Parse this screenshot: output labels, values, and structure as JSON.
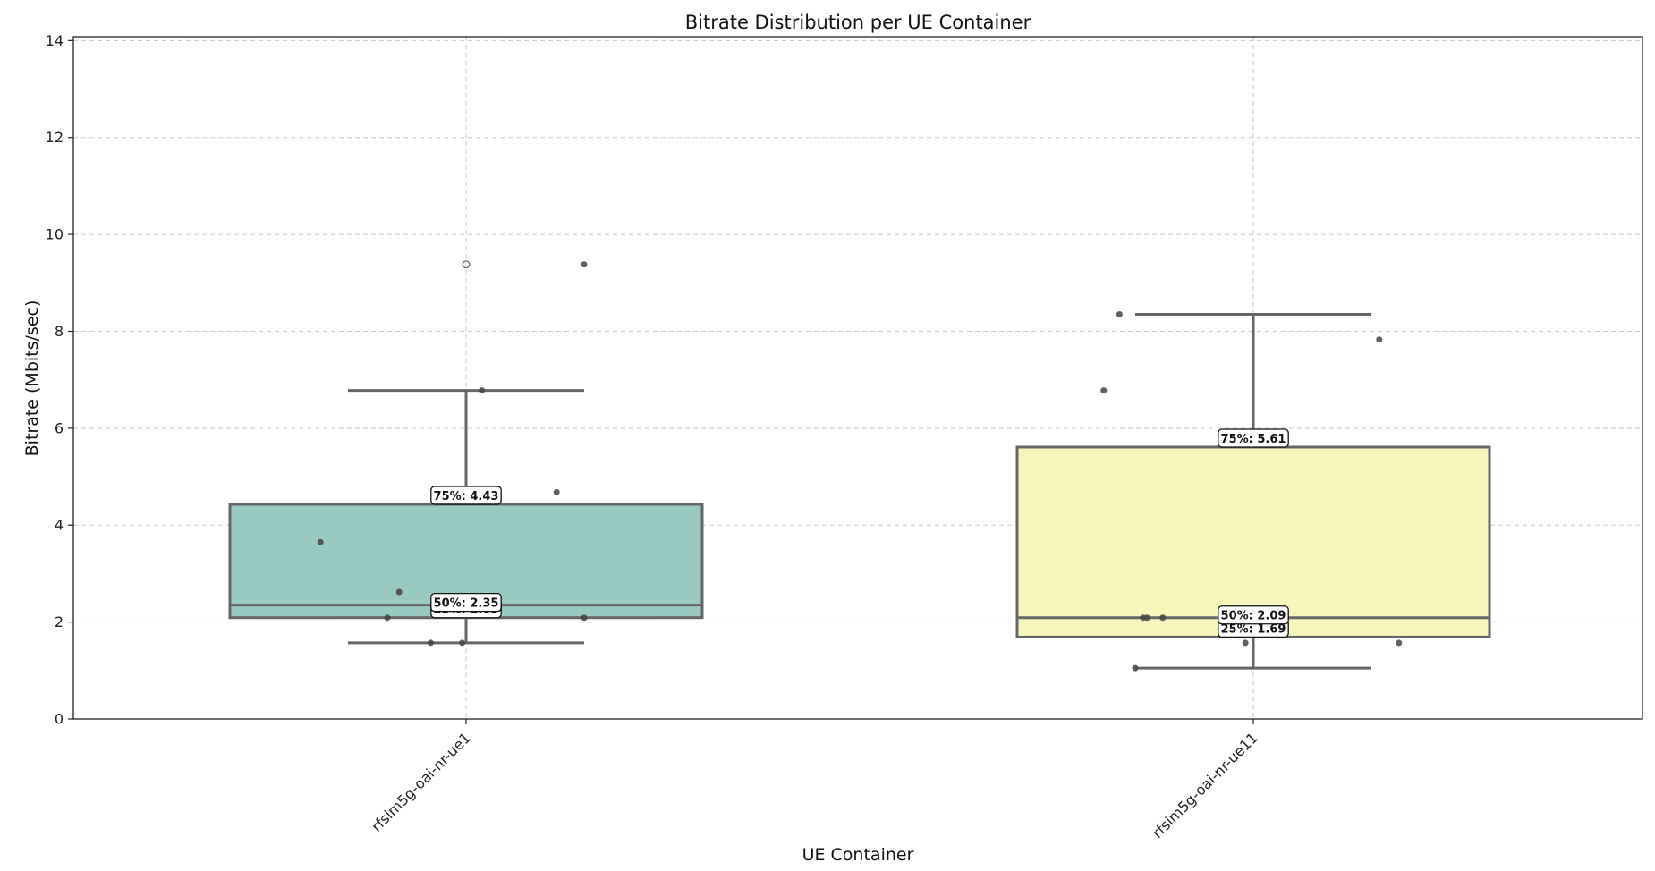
{
  "chart_data": {
    "type": "box",
    "title": "Bitrate Distribution per UE Container",
    "xlabel": "UE Container",
    "ylabel": "Bitrate (Mbits/sec)",
    "ylim": [
      0,
      14
    ],
    "yticks": [
      0,
      2,
      4,
      6,
      8,
      10,
      12,
      14
    ],
    "grid": true,
    "categories": [
      "rfsim5g-oai-nr-ue1",
      "rfsim5g-oai-nr-ue11"
    ],
    "boxes": [
      {
        "name": "rfsim5g-oai-nr-ue1",
        "color": "#99cac1",
        "whisker_low": 1.57,
        "q1": 2.09,
        "median": 2.35,
        "q3": 4.43,
        "whisker_high": 6.78,
        "outliers": [
          9.38
        ],
        "labels": {
          "q1": "25%: 2.09",
          "median": "50%: 2.35",
          "q3": "75%: 4.43"
        },
        "points": [
          {
            "dx": -0.37,
            "y": 3.65
          },
          {
            "dx": -0.17,
            "y": 2.62
          },
          {
            "dx": -0.2,
            "y": 2.09
          },
          {
            "dx": -0.09,
            "y": 1.57
          },
          {
            "dx": -0.01,
            "y": 1.57
          },
          {
            "dx": 0.04,
            "y": 6.78
          },
          {
            "dx": 0.23,
            "y": 4.68
          },
          {
            "dx": 0.3,
            "y": 9.38
          },
          {
            "dx": 0.3,
            "y": 2.09
          }
        ]
      },
      {
        "name": "rfsim5g-oai-nr-ue11",
        "color": "#f5f5bc",
        "whisker_low": 1.05,
        "q1": 1.69,
        "median": 2.09,
        "q3": 5.61,
        "whisker_high": 8.35,
        "outliers": [],
        "labels": {
          "q1": "25%: 1.69",
          "median": "50%: 2.09",
          "q3": "75%: 5.61"
        },
        "points": [
          {
            "dx": -0.34,
            "y": 8.35
          },
          {
            "dx": -0.38,
            "y": 6.78
          },
          {
            "dx": -0.28,
            "y": 2.09
          },
          {
            "dx": -0.27,
            "y": 2.09
          },
          {
            "dx": -0.23,
            "y": 2.09
          },
          {
            "dx": -0.3,
            "y": 1.05
          },
          {
            "dx": -0.02,
            "y": 1.57
          },
          {
            "dx": 0.32,
            "y": 7.83
          },
          {
            "dx": 0.37,
            "y": 1.57
          }
        ]
      }
    ]
  }
}
